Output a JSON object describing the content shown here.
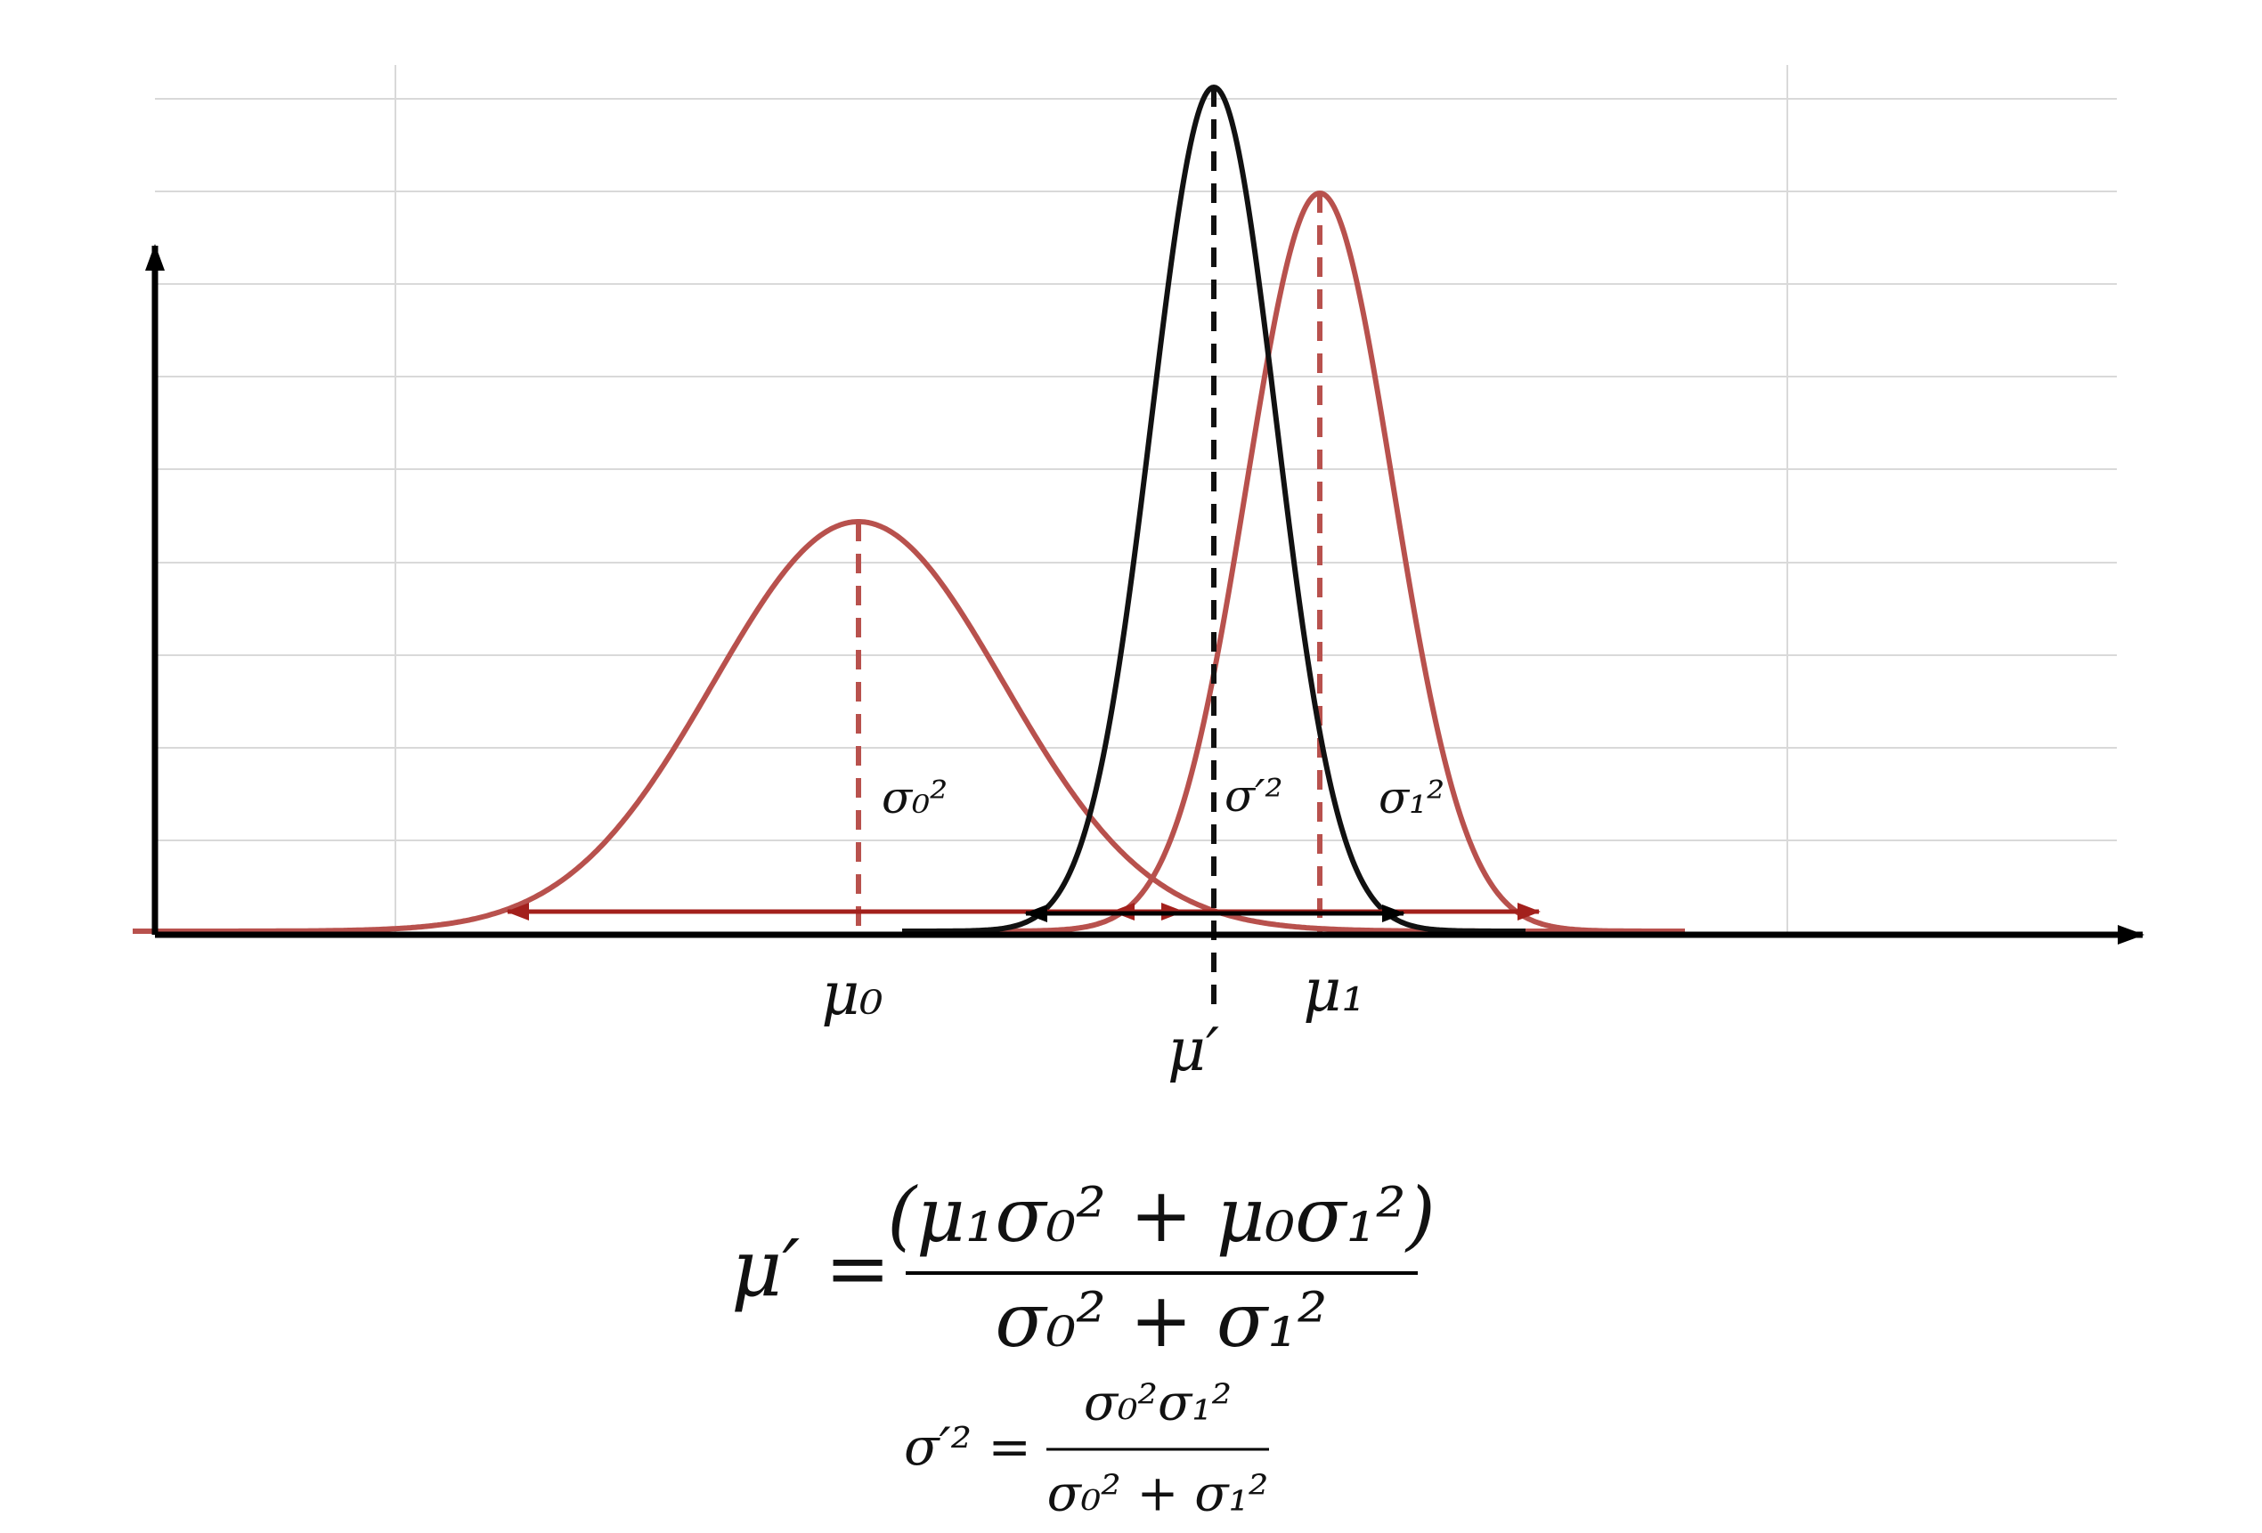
{
  "labels": {
    "mu0": "μ₀",
    "mu1": "μ₁",
    "mu_prime": "μ′",
    "sigma0": "σ₀²",
    "sigma_prime": "σ′²",
    "sigma1": "σ₁²"
  },
  "formula_mean": {
    "lhs": "μ′ =",
    "numerator": "(μ₁σ₀² + μ₀σ₁²)",
    "denominator": "σ₀² + σ₁²"
  },
  "formula_variance": {
    "lhs": "σ′² =",
    "numerator": "σ₀²σ₁²",
    "denominator": "σ₀² + σ₁²"
  }
}
